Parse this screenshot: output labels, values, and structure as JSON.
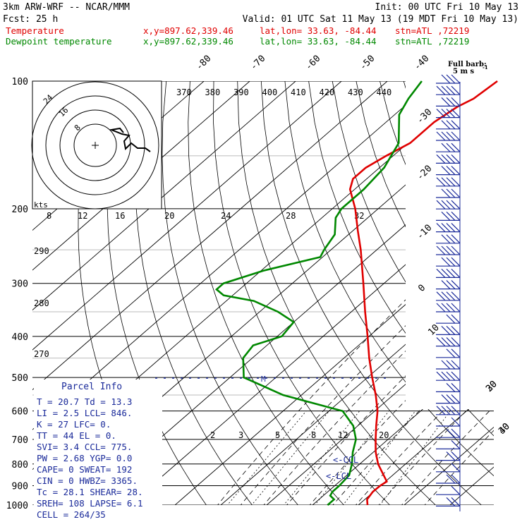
{
  "header": {
    "model": "3km ARW-WRF -- NCAR/MMM",
    "init": "Init: 00 UTC Fri 10 May 13",
    "fcst": "Fcst:    25 h",
    "valid": "Valid: 01 UTC Sat 11 May 13 (19 MDT Fri 10 May 13)"
  },
  "legend": {
    "temperature": {
      "label": "Temperature",
      "xy": "x,y=897.62,339.46",
      "latlon": "lat,lon= 33.63, -84.44",
      "stn": "stn=ATL ,72219",
      "color": "#e00000"
    },
    "dewpoint": {
      "label": "Dewpoint temperature",
      "xy": "x,y=897.62,339.46",
      "latlon": "lat,lon= 33.63, -84.44",
      "stn": "stn=ATL ,72219",
      "color": "#008800"
    }
  },
  "wind_barb_note": [
    "Full barb:",
    "5 m s"
  ],
  "parcel_info": {
    "title": "Parcel Info",
    "rows": [
      "T  =  20.7 Td = 13.3",
      "LI =   2.5 LCL=  846.",
      "K  =    27 LFC=    0.",
      "TT =    44 EL =    0.",
      "SVI=   3.4 CCL=  775.",
      "PW =  2.68 YGP=   0.0",
      "CAPE=    0 SWEAT=  192",
      "CIN =    0 HWBZ= 3365.",
      "Tc =  28.1 SHEAR=  28.",
      "SREH=  108 LAPSE=  6.1",
      "CELL = 264/35"
    ]
  },
  "hodograph": {
    "unit": "kts",
    "ring_labels": [
      "24",
      "16",
      "8"
    ]
  },
  "annotations": {
    "ccl": "<-CCL",
    "lcl": "<-LCL",
    "m_marker": "M"
  },
  "chart_data": {
    "type": "line",
    "title": "Skew-T log-P sounding",
    "pressure_levels": [
      100,
      200,
      300,
      400,
      500,
      600,
      700,
      800,
      900,
      1000
    ],
    "skewed_isotherm_labels": [
      "-80",
      "-70",
      "-60",
      "-50",
      "-40",
      "-30",
      "-20",
      "-10",
      "0",
      "10",
      "20",
      "30",
      "40"
    ],
    "theta_e_labels": [
      "370",
      "380",
      "390",
      "400",
      "410",
      "420",
      "430",
      "440"
    ],
    "mixing_ratio_labels": [
      "8",
      "12",
      "16",
      "20",
      "24",
      "28",
      "32"
    ],
    "low_mixing_ratio_labels": [
      "2",
      "3",
      "5",
      "8",
      "12",
      "20"
    ],
    "theta_labels": [
      "290",
      "280",
      "270"
    ],
    "series": [
      {
        "name": "Temperature",
        "color": "#e00000",
        "pressure": [
          1000,
          970,
          930,
          900,
          880,
          850,
          800,
          750,
          700,
          650,
          600,
          550,
          500,
          450,
          400,
          350,
          300,
          250,
          225,
          200,
          180,
          170,
          160,
          150,
          140,
          125,
          115,
          110,
          100
        ],
        "values": [
          22,
          20.5,
          19.8,
          19.9,
          20.3,
          18.0,
          14.0,
          10.5,
          7.3,
          4.0,
          0.6,
          -3.8,
          -9.0,
          -14.5,
          -20.3,
          -27.0,
          -34.5,
          -43.5,
          -49.0,
          -55.0,
          -61.0,
          -63.0,
          -63.0,
          -61.5,
          -59.5,
          -59.5,
          -58.3,
          -56.8,
          -56.0
        ]
      },
      {
        "name": "Dewpoint temperature",
        "color": "#008800",
        "pressure": [
          1000,
          970,
          950,
          930,
          900,
          880,
          850,
          800,
          750,
          700,
          650,
          600,
          550,
          500,
          450,
          420,
          400,
          370,
          350,
          330,
          320,
          310,
          300,
          280,
          260,
          250,
          230,
          210,
          200,
          180,
          160,
          140,
          120,
          110,
          100
        ],
        "values": [
          13.3,
          13.3,
          11.5,
          11.0,
          11.0,
          10.8,
          10.5,
          8.3,
          5.5,
          3.0,
          -1.0,
          -7.0,
          -24.0,
          -37.0,
          -42.0,
          -43.0,
          -39.0,
          -40.0,
          -46.0,
          -54.0,
          -62.0,
          -65.0,
          -65.0,
          -59.5,
          -50.5,
          -51.5,
          -53.0,
          -57.0,
          -58.0,
          -58.0,
          -59.0,
          -62.0,
          -69.0,
          -71.0,
          -72.5
        ]
      }
    ]
  }
}
